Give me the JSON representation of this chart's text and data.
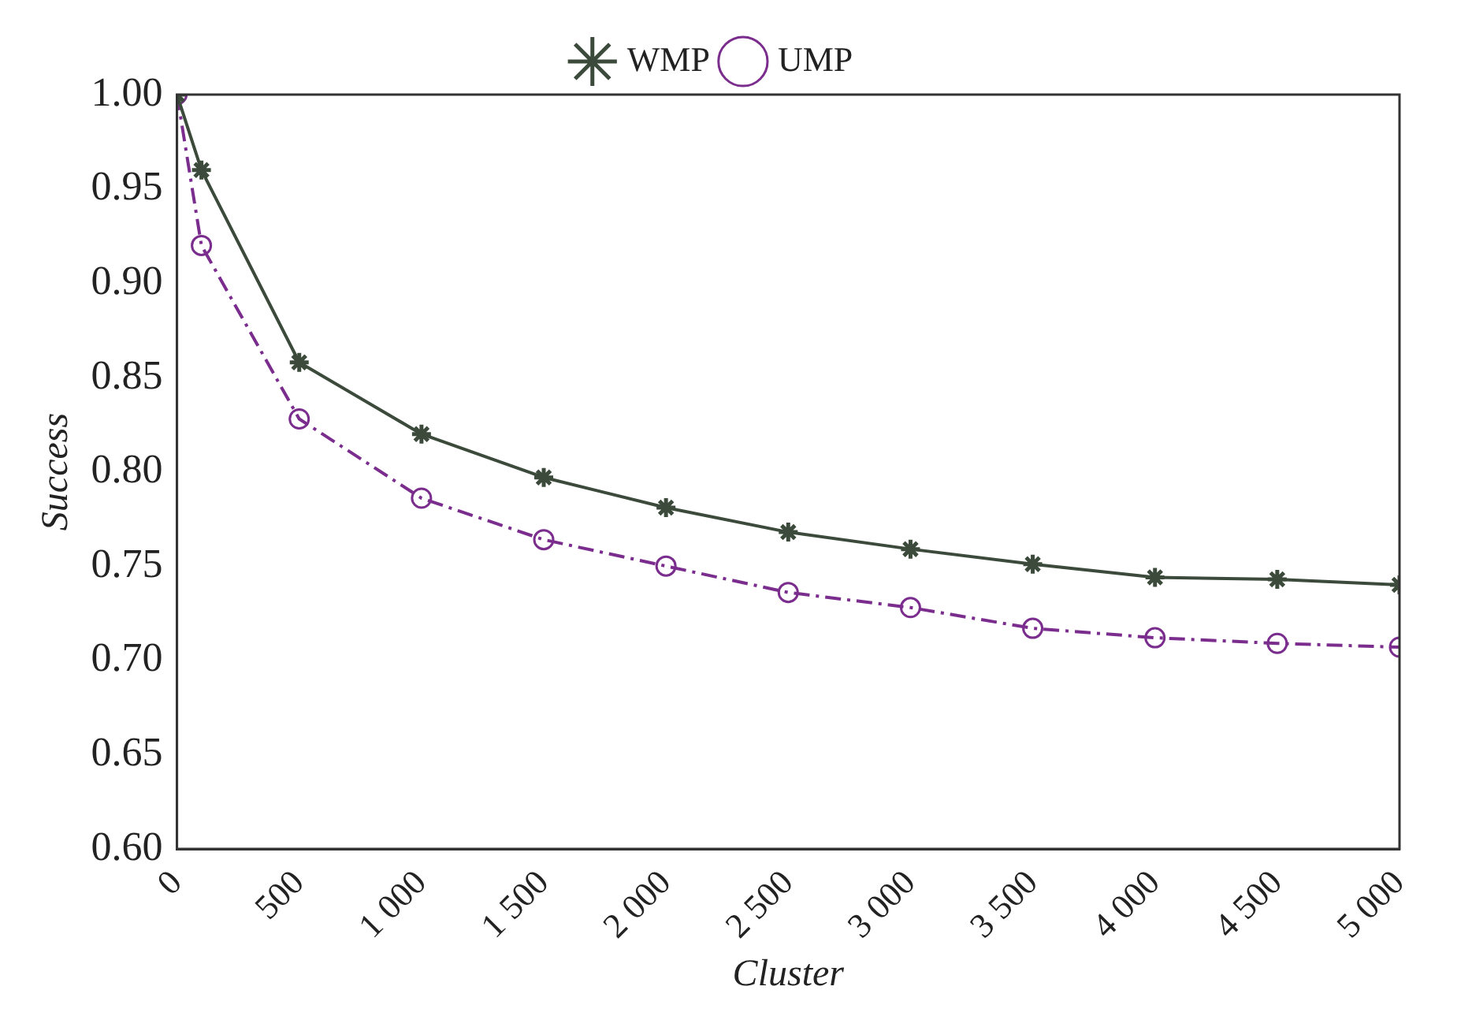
{
  "chart_data": {
    "type": "line",
    "xlabel": "Cluster",
    "ylabel": "Success",
    "x": [
      0,
      100,
      500,
      1000,
      1500,
      2000,
      2500,
      3000,
      3500,
      4000,
      4500,
      5000
    ],
    "series": [
      {
        "name": "WMP",
        "color": "#3b4a3b",
        "marker": "cross",
        "line_style": "solid",
        "values": [
          1.0,
          0.96,
          0.858,
          0.82,
          0.797,
          0.781,
          0.768,
          0.759,
          0.751,
          0.744,
          0.743,
          0.74
        ]
      },
      {
        "name": "UMP",
        "color": "#7b2d8e",
        "marker": "circle",
        "line_style": "dashed",
        "values": [
          1.0,
          0.92,
          0.828,
          0.786,
          0.764,
          0.75,
          0.736,
          0.728,
          0.717,
          0.712,
          0.709,
          0.707
        ]
      }
    ],
    "xlim": [
      0,
      5000
    ],
    "xticks": [
      0,
      500,
      {
        "value": 1000,
        "label": "1 000"
      },
      {
        "value": 1500,
        "label": "1 500"
      },
      {
        "value": 2000,
        "label": "2 000"
      },
      {
        "value": 2500,
        "label": "2 500"
      },
      {
        "value": 3000,
        "label": "3 000"
      },
      {
        "value": 3500,
        "label": "3 500"
      },
      {
        "value": 4000,
        "label": "4 000"
      },
      {
        "value": 4500,
        "label": "4 500"
      },
      {
        "value": 5000,
        "label": "5 000"
      }
    ],
    "ylim": [
      0.6,
      1.0
    ],
    "yticks": [
      {
        "value": 0.6,
        "label": "0.60"
      },
      0.65,
      {
        "value": 0.7,
        "label": "0.70"
      },
      0.75,
      {
        "value": 0.8,
        "label": "0.80"
      },
      0.85,
      {
        "value": 0.9,
        "label": "0.90"
      },
      0.95,
      {
        "value": 1.0,
        "label": "1.00"
      }
    ],
    "grid": false,
    "legend": "top"
  }
}
